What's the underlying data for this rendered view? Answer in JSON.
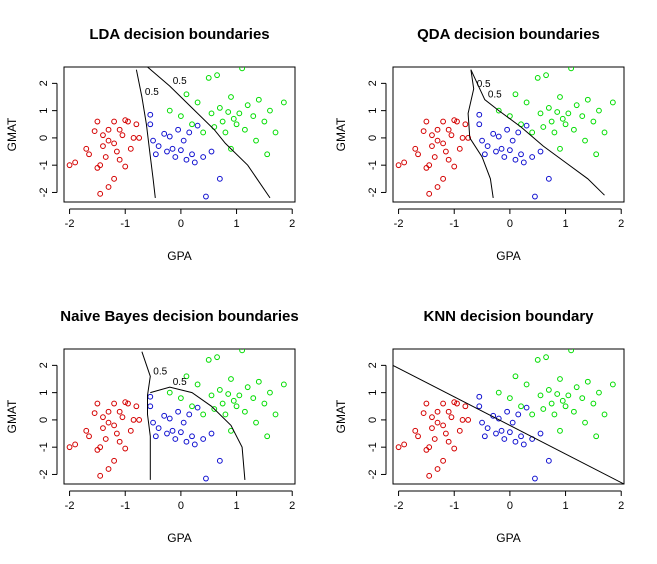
{
  "chart_data": [
    {
      "type": "scatter",
      "title": "LDA decision boundaries",
      "xlabel": "GPA",
      "ylabel": "GMAT",
      "xlim": [
        -2.1,
        2.05
      ],
      "ylim": [
        -2.35,
        2.6
      ],
      "xticks": [
        -2,
        -1,
        0,
        1,
        2
      ],
      "yticks": [
        -2,
        -1,
        0,
        1,
        2
      ],
      "boundaries": [
        {
          "label": "0.5",
          "points": [
            [
              -0.8,
              2.5
            ],
            [
              -0.7,
              1.5
            ],
            [
              -0.62,
              0.5
            ],
            [
              -0.56,
              -0.5
            ],
            [
              -0.5,
              -1.5
            ],
            [
              -0.46,
              -2.2
            ]
          ]
        },
        {
          "label": "0.5",
          "points": [
            [
              -0.6,
              2.6
            ],
            [
              -0.2,
              1.9
            ],
            [
              0.2,
              1.1
            ],
            [
              0.6,
              0.3
            ],
            [
              0.8,
              -0.2
            ],
            [
              1.2,
              -1.0
            ],
            [
              1.6,
              -2.2
            ]
          ]
        }
      ]
    },
    {
      "type": "scatter",
      "title": "QDA decision boundaries",
      "xlabel": "GPA",
      "ylabel": "GMAT",
      "xlim": [
        -2.1,
        2.05
      ],
      "ylim": [
        -2.35,
        2.6
      ],
      "xticks": [
        -2,
        -1,
        0,
        1,
        2
      ],
      "yticks": [
        -2,
        -1,
        0,
        1,
        2
      ],
      "boundaries": [
        {
          "label": "0.5",
          "points": [
            [
              -0.7,
              2.5
            ],
            [
              -0.65,
              1.8
            ],
            [
              -0.75,
              0.9
            ],
            [
              -0.72,
              0.0
            ],
            [
              -0.5,
              -0.7
            ],
            [
              -0.35,
              -1.5
            ],
            [
              -0.3,
              -2.2
            ]
          ]
        },
        {
          "label": "0.5",
          "points": [
            [
              -0.7,
              2.5
            ],
            [
              -0.45,
              1.4
            ],
            [
              -0.2,
              1.0
            ],
            [
              0.2,
              0.4
            ],
            [
              0.6,
              -0.3
            ],
            [
              1.0,
              -0.9
            ],
            [
              1.4,
              -1.5
            ],
            [
              1.7,
              -2.1
            ]
          ]
        }
      ]
    },
    {
      "type": "scatter",
      "title": "Naive Bayes decision boundaries",
      "xlabel": "GPA",
      "ylabel": "GMAT",
      "xlim": [
        -2.1,
        2.05
      ],
      "ylim": [
        -2.35,
        2.6
      ],
      "xticks": [
        -2,
        -1,
        0,
        1,
        2
      ],
      "yticks": [
        -2,
        -1,
        0,
        1,
        2
      ],
      "boundaries": [
        {
          "label": "0.5",
          "points": [
            [
              -0.7,
              2.5
            ],
            [
              -0.55,
              1.6
            ],
            [
              -0.6,
              0.9
            ],
            [
              -0.6,
              0.2
            ],
            [
              -0.55,
              -0.6
            ],
            [
              -0.55,
              -1.4
            ],
            [
              -0.55,
              -2.2
            ]
          ]
        },
        {
          "label": "0.5",
          "points": [
            [
              -0.55,
              1.0
            ],
            [
              -0.2,
              1.2
            ],
            [
              0.2,
              1.0
            ],
            [
              0.55,
              0.5
            ],
            [
              0.9,
              -0.2
            ],
            [
              1.1,
              -1.0
            ],
            [
              1.15,
              -2.2
            ]
          ]
        }
      ]
    },
    {
      "type": "scatter",
      "title": "KNN decision boundary",
      "xlabel": "GPA",
      "ylabel": "GMAT",
      "xlim": [
        -2.1,
        2.05
      ],
      "ylim": [
        -2.35,
        2.6
      ],
      "xticks": [
        -2,
        -1,
        0,
        1,
        2
      ],
      "yticks": [
        -2,
        -1,
        0,
        1,
        2
      ],
      "boundaries": [
        {
          "label": "",
          "points": [
            [
              -2.1,
              2.0
            ],
            [
              2.05,
              -2.35
            ]
          ]
        }
      ]
    }
  ],
  "points": {
    "class_colors": [
      "#d40000",
      "#1010d0",
      "#00dd00"
    ],
    "red": [
      [
        -2.0,
        -1.0
      ],
      [
        -1.9,
        -0.9
      ],
      [
        -1.7,
        -0.4
      ],
      [
        -1.65,
        -0.6
      ],
      [
        -1.55,
        0.25
      ],
      [
        -1.5,
        0.6
      ],
      [
        -1.5,
        -1.1
      ],
      [
        -1.45,
        -1.0
      ],
      [
        -1.45,
        -2.05
      ],
      [
        -1.4,
        0.1
      ],
      [
        -1.4,
        -0.3
      ],
      [
        -1.35,
        -0.7
      ],
      [
        -1.3,
        0.3
      ],
      [
        -1.3,
        -0.1
      ],
      [
        -1.3,
        -1.8
      ],
      [
        -1.2,
        0.6
      ],
      [
        -1.2,
        -0.2
      ],
      [
        -1.15,
        -0.5
      ],
      [
        -1.1,
        0.3
      ],
      [
        -1.1,
        -0.8
      ],
      [
        -1.05,
        0.1
      ],
      [
        -1.0,
        0.65
      ],
      [
        -0.95,
        0.6
      ],
      [
        -0.9,
        -0.4
      ],
      [
        -1.0,
        -1.05
      ],
      [
        -0.85,
        0.0
      ],
      [
        -0.8,
        0.5
      ],
      [
        -0.75,
        0.0
      ],
      [
        -1.2,
        -1.5
      ]
    ],
    "blue": [
      [
        -0.55,
        0.85
      ],
      [
        -0.55,
        0.5
      ],
      [
        -0.5,
        -0.1
      ],
      [
        -0.45,
        -0.6
      ],
      [
        -0.4,
        -0.3
      ],
      [
        -0.3,
        0.15
      ],
      [
        -0.25,
        -0.5
      ],
      [
        -0.2,
        0.05
      ],
      [
        -0.15,
        -0.4
      ],
      [
        -0.1,
        -0.7
      ],
      [
        -0.05,
        0.3
      ],
      [
        0.0,
        -0.45
      ],
      [
        0.05,
        -0.1
      ],
      [
        0.1,
        -0.8
      ],
      [
        0.15,
        0.2
      ],
      [
        0.2,
        -0.6
      ],
      [
        0.25,
        -0.9
      ],
      [
        0.3,
        0.45
      ],
      [
        0.4,
        -0.7
      ],
      [
        0.45,
        -2.15
      ],
      [
        0.55,
        -0.5
      ],
      [
        0.7,
        -1.5
      ]
    ],
    "green": [
      [
        -0.2,
        1.0
      ],
      [
        0.0,
        0.8
      ],
      [
        0.1,
        1.6
      ],
      [
        0.2,
        0.5
      ],
      [
        0.3,
        1.3
      ],
      [
        0.4,
        0.2
      ],
      [
        0.5,
        2.2
      ],
      [
        0.55,
        0.9
      ],
      [
        0.6,
        0.4
      ],
      [
        0.65,
        2.3
      ],
      [
        0.7,
        1.1
      ],
      [
        0.75,
        0.6
      ],
      [
        0.8,
        0.2
      ],
      [
        0.85,
        0.95
      ],
      [
        0.9,
        1.5
      ],
      [
        0.95,
        0.7
      ],
      [
        1.0,
        0.5
      ],
      [
        1.05,
        0.9
      ],
      [
        1.1,
        2.55
      ],
      [
        1.15,
        0.3
      ],
      [
        1.2,
        1.2
      ],
      [
        1.3,
        0.8
      ],
      [
        1.35,
        -0.1
      ],
      [
        1.4,
        1.4
      ],
      [
        1.5,
        0.6
      ],
      [
        1.55,
        -0.6
      ],
      [
        1.6,
        1.0
      ],
      [
        1.7,
        0.2
      ],
      [
        1.85,
        1.3
      ],
      [
        0.9,
        -0.4
      ]
    ]
  }
}
